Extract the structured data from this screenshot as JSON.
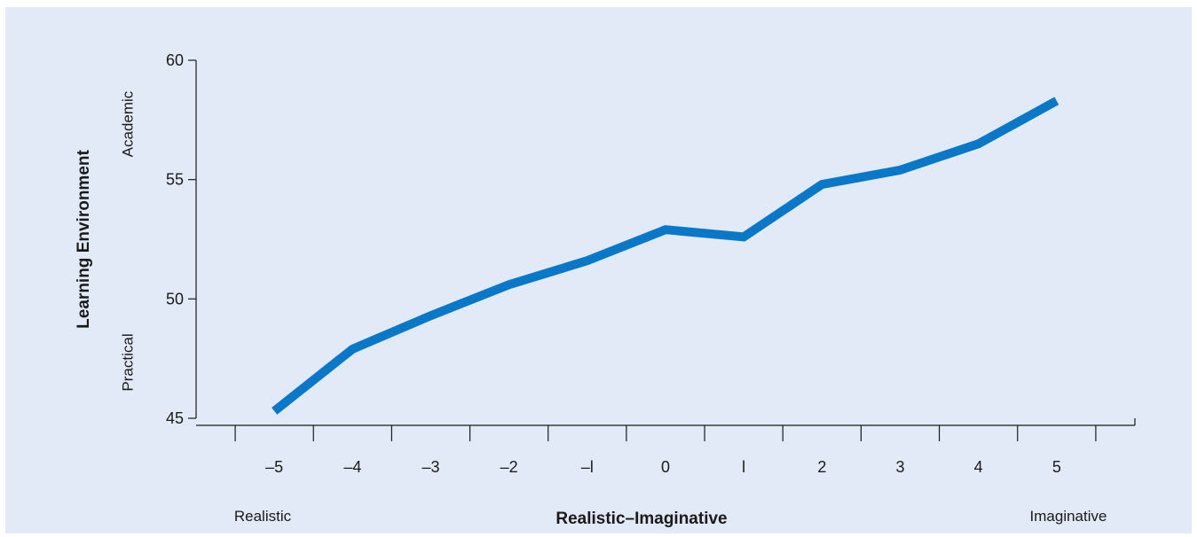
{
  "chart_data": {
    "type": "line",
    "xlabel": "Realistic–Imaginative",
    "ylabel": "Learning Environment",
    "x": [
      -5,
      -4,
      -3,
      -2,
      -1,
      0,
      1,
      2,
      3,
      4,
      5
    ],
    "x_tick_labels": [
      "–5",
      "–4",
      "–3",
      "–2",
      "–l",
      "0",
      "l",
      "2",
      "3",
      "4",
      "5"
    ],
    "y_ticks": [
      45,
      50,
      55,
      60
    ],
    "y_tick_labels": [
      "45",
      "50",
      "55",
      "60"
    ],
    "xlim": [
      -6,
      6
    ],
    "ylim": [
      45,
      60
    ],
    "series": [
      {
        "values": [
          45.3,
          47.9,
          49.3,
          50.6,
          51.6,
          52.9,
          52.6,
          54.8,
          55.4,
          56.5,
          58.3
        ]
      }
    ],
    "x_end_labels": {
      "low": "Realistic",
      "high": "Imaginative"
    },
    "y_end_labels": {
      "low": "Practical",
      "high": "Academic"
    },
    "grid": false,
    "line_color": "#0a78c8",
    "background_color": "#e3eaf7"
  }
}
